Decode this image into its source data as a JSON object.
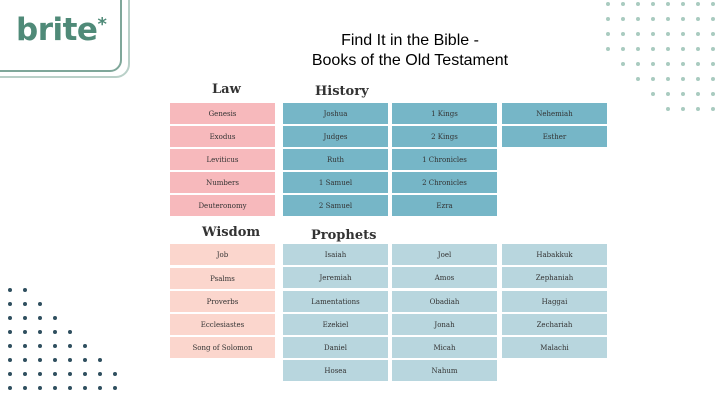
{
  "logo": {
    "text": "brite",
    "mark": "*"
  },
  "title": {
    "line1": "Find It in the Bible -",
    "line2": "Books of the Old Testament"
  },
  "colors": {
    "law": "#f7b9bc",
    "history": "#76b6c7",
    "wisdom": "#fbd6cd",
    "prophets": "#b8d6de",
    "brand": "#4f8a78"
  },
  "sections": {
    "law": {
      "heading": "Law",
      "books": [
        "Genesis",
        "Exodus",
        "Leviticus",
        "Numbers",
        "Deuteronomy"
      ]
    },
    "history": {
      "heading": "History",
      "col1": [
        "Joshua",
        "Judges",
        "Ruth",
        "1 Samuel",
        "2 Samuel"
      ],
      "col2": [
        "1 Kings",
        "2 Kings",
        "1 Chronicles",
        "2 Chronicles",
        "Ezra"
      ],
      "col3": [
        "Nehemiah",
        "Esther"
      ]
    },
    "wisdom": {
      "heading": "Wisdom",
      "books": [
        "Job",
        "Psalms",
        "Proverbs",
        "Ecclesiastes",
        "Song of Solomon"
      ]
    },
    "prophets": {
      "heading": "Prophets",
      "col1": [
        "Isaiah",
        "Jeremiah",
        "Lamentations",
        "Ezekiel",
        "Daniel",
        "Hosea"
      ],
      "col2": [
        "Joel",
        "Amos",
        "Obadiah",
        "Jonah",
        "Micah",
        "Nahum"
      ],
      "col3": [
        "Habakkuk",
        "Zephaniah",
        "Haggai",
        "Zechariah",
        "Malachi"
      ]
    }
  }
}
